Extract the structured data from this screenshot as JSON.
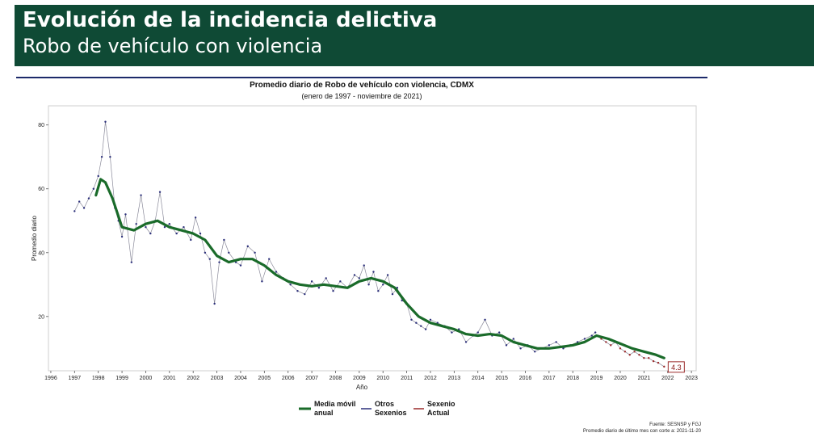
{
  "header": {
    "title": "Evolución de la incidencia delictiva",
    "subtitle": "Robo de vehículo con violencia"
  },
  "colors": {
    "banner": "#0f4a35",
    "moving_average": "#1a6b2a",
    "otros_sexenios": "#2b2f7a",
    "sexenio_actual": "#9b2a2a",
    "rule": "#1d2a6a"
  },
  "chart_data": {
    "type": "line",
    "title": "Promedio diario de Robo de vehículo con violencia, CDMX",
    "subtitle": "(enero de 1997 - noviembre de 2021)",
    "xlabel": "Año",
    "ylabel": "Promedio diario",
    "xlim": [
      1995.9,
      2023.2
    ],
    "ylim": [
      3,
      86
    ],
    "x_ticks": [
      1996,
      1997,
      1998,
      1999,
      2000,
      2001,
      2002,
      2003,
      2004,
      2005,
      2006,
      2007,
      2008,
      2009,
      2010,
      2011,
      2012,
      2013,
      2014,
      2015,
      2016,
      2017,
      2018,
      2019,
      2020,
      2021,
      2022,
      2023
    ],
    "x_tick_labels": [
      "1996",
      "1997",
      "1998",
      "1999",
      "2000",
      "2001",
      "2002",
      "2003",
      "2004",
      "2005",
      "2006",
      "2007",
      "2008",
      "2009",
      "2010",
      "2011",
      "2012",
      "2013",
      "2014",
      "2015",
      "2016",
      "2017",
      "2018",
      "2019",
      "2020",
      "2021",
      "2022",
      "2023"
    ],
    "y_ticks": [
      20,
      40,
      60,
      80
    ],
    "legend_position": "bottom",
    "series": [
      {
        "name": "Otros Sexenios",
        "style": "line-points",
        "x": [
          1997.0,
          1997.2,
          1997.4,
          1997.6,
          1997.8,
          1998.0,
          1998.15,
          1998.3,
          1998.5,
          1998.7,
          1998.85,
          1999.0,
          1999.15,
          1999.4,
          1999.6,
          1999.8,
          2000.0,
          2000.2,
          2000.4,
          2000.6,
          2000.8,
          2001.0,
          2001.3,
          2001.6,
          2001.9,
          2002.1,
          2002.3,
          2002.5,
          2002.7,
          2002.9,
          2003.1,
          2003.3,
          2003.5,
          2003.8,
          2004.0,
          2004.3,
          2004.6,
          2004.9,
          2005.2,
          2005.5,
          2005.8,
          2006.1,
          2006.4,
          2006.7,
          2007.0,
          2007.3,
          2007.6,
          2007.9,
          2008.2,
          2008.5,
          2008.8,
          2009.0,
          2009.2,
          2009.4,
          2009.6,
          2009.8,
          2010.0,
          2010.2,
          2010.4,
          2010.6,
          2010.8,
          2011.0,
          2011.2,
          2011.4,
          2011.6,
          2011.8,
          2012.0,
          2012.3,
          2012.6,
          2012.9,
          2013.2,
          2013.5,
          2013.8,
          2014.0,
          2014.3,
          2014.6,
          2014.9,
          2015.2,
          2015.5,
          2015.8,
          2016.1,
          2016.4,
          2016.7,
          2017.0,
          2017.3,
          2017.6,
          2017.9,
          2018.2,
          2018.5,
          2018.8,
          2018.95
        ],
        "values": [
          53,
          56,
          54,
          57,
          60,
          64,
          70,
          81,
          70,
          54,
          50,
          45,
          52,
          37,
          49,
          58,
          48,
          46,
          50,
          59,
          48,
          49,
          46,
          48,
          44,
          51,
          46,
          40,
          38,
          24,
          37,
          44,
          40,
          37,
          36,
          42,
          40,
          31,
          38,
          34,
          32,
          30,
          28,
          27,
          31,
          29,
          32,
          28,
          31,
          29,
          33,
          32,
          36,
          30,
          34,
          28,
          30,
          33,
          27,
          29,
          25,
          24,
          19,
          18,
          17,
          16,
          19,
          18,
          17,
          15,
          16,
          12,
          14,
          15,
          19,
          14,
          15,
          11,
          13,
          10,
          11,
          9,
          10,
          11,
          12,
          10,
          11,
          12,
          13,
          14,
          15
        ]
      },
      {
        "name": "Sexenio Actual",
        "style": "line-points",
        "x": [
          2019.0,
          2019.2,
          2019.4,
          2019.6,
          2019.8,
          2020.0,
          2020.2,
          2020.4,
          2020.6,
          2020.8,
          2021.0,
          2021.2,
          2021.4,
          2021.6,
          2021.85
        ],
        "values": [
          14,
          13,
          12,
          11,
          12,
          10,
          9,
          8,
          9,
          8,
          7,
          7,
          6,
          5.5,
          4.3
        ]
      },
      {
        "name": "Media móvil anual",
        "style": "thick-line",
        "x": [
          1997.9,
          1998.1,
          1998.3,
          1998.6,
          1999.0,
          1999.5,
          2000.0,
          2000.5,
          2001.0,
          2001.5,
          2002.0,
          2002.5,
          2003.0,
          2003.5,
          2004.0,
          2004.5,
          2005.0,
          2005.5,
          2006.0,
          2006.5,
          2007.0,
          2007.5,
          2008.0,
          2008.5,
          2009.0,
          2009.5,
          2010.0,
          2010.5,
          2011.0,
          2011.5,
          2012.0,
          2012.5,
          2013.0,
          2013.5,
          2014.0,
          2014.5,
          2015.0,
          2015.5,
          2016.0,
          2016.5,
          2017.0,
          2017.5,
          2018.0,
          2018.5,
          2019.0,
          2019.5,
          2020.0,
          2020.5,
          2021.0,
          2021.5,
          2021.85
        ],
        "values": [
          58,
          63,
          62,
          57,
          48,
          47,
          49,
          50,
          48,
          47,
          46,
          44,
          39,
          37,
          38,
          38,
          36,
          33,
          31,
          30,
          29.5,
          30,
          29.5,
          29,
          31,
          32,
          31,
          29,
          24,
          20,
          18,
          17,
          16,
          14.5,
          14,
          14.5,
          14,
          12,
          11,
          10,
          10,
          10.5,
          11,
          12,
          14,
          13,
          11.5,
          10,
          9,
          8,
          7
        ]
      }
    ],
    "end_label": "4.3",
    "legend": [
      {
        "line1": "Media móvil",
        "line2": "anual",
        "series": "Media móvil anual"
      },
      {
        "line1": "Otros",
        "line2": "Sexenios",
        "series": "Otros Sexenios"
      },
      {
        "line1": "Sexenio",
        "line2": "Actual",
        "series": "Sexenio Actual"
      }
    ]
  },
  "source": {
    "line1": "Fuente: SESNSP y FGJ",
    "line2": "Promedio diario de último mes con corte a: 2021-11-20"
  }
}
